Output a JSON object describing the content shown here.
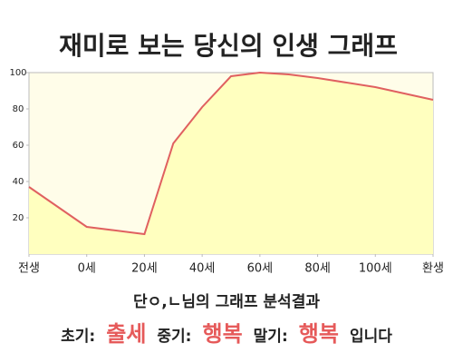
{
  "chart_data": {
    "type": "area",
    "title": "재미로 보는 당신의 인생 그래프",
    "x": [
      -20,
      0,
      20,
      30,
      40,
      50,
      60,
      70,
      80,
      100,
      120
    ],
    "values": [
      37,
      15,
      11,
      61,
      81,
      98,
      100,
      99,
      97,
      92,
      85
    ],
    "color": "#e06060",
    "fill": "#ffffbf",
    "background": "#fffde9",
    "xlim": [
      -20,
      120
    ],
    "xticks": [
      {
        "value": -20,
        "label": "전생"
      },
      {
        "value": 0,
        "label": "0세"
      },
      {
        "value": 20,
        "label": "20세"
      },
      {
        "value": 40,
        "label": "40세"
      },
      {
        "value": 60,
        "label": "60세"
      },
      {
        "value": 80,
        "label": "80세"
      },
      {
        "value": 100,
        "label": "100세"
      },
      {
        "value": 120,
        "label": "환생"
      }
    ],
    "ylim": [
      0,
      100
    ],
    "yticks": [
      20,
      40,
      60,
      80,
      100
    ]
  },
  "analysis": {
    "summary": "단ㅇ,ㄴ님의 그래프 분석결과",
    "stages": [
      {
        "label": "초기:",
        "result": "출세"
      },
      {
        "label": "중기:",
        "result": "행복"
      },
      {
        "label": "말기:",
        "result": "행복"
      }
    ],
    "ending": "입니다"
  }
}
